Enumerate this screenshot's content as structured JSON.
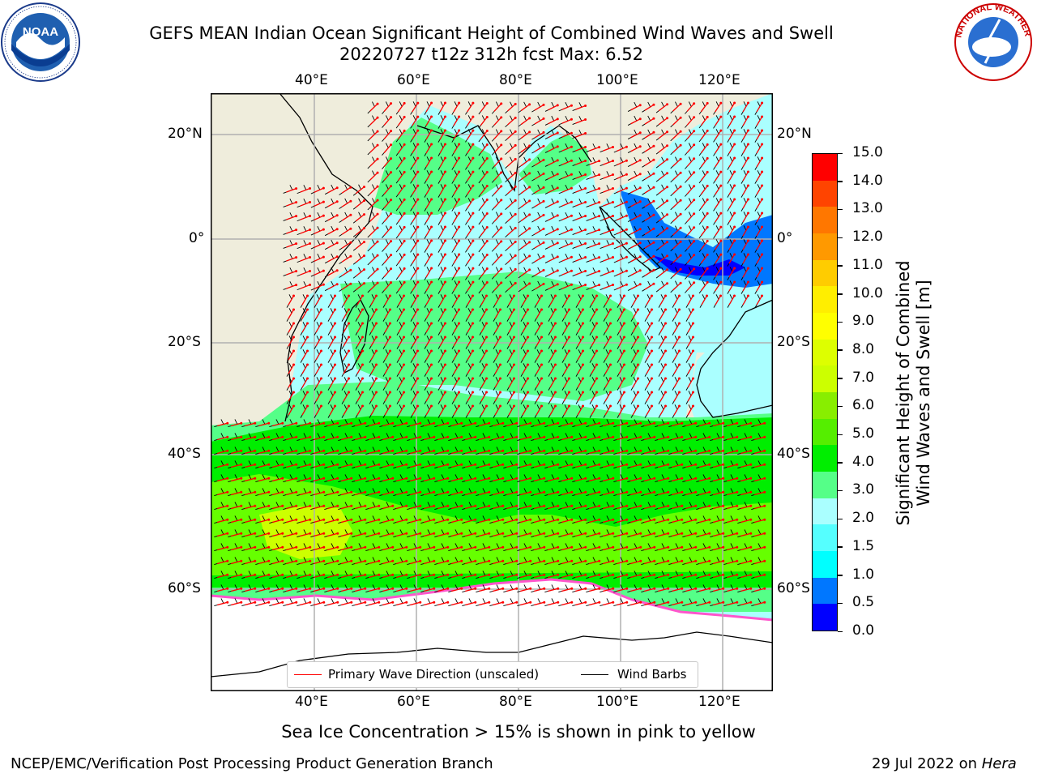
{
  "title": {
    "line1": "GEFS MEAN Indian Ocean Significant Height of Combined Wind Waves and Swell",
    "line2": "20220727 t12z 312h fcst   Max: 6.52"
  },
  "map": {
    "lon_ticks_top": [
      "40°E",
      "60°E",
      "80°E",
      "100°E",
      "120°E"
    ],
    "lon_ticks_bottom": [
      "40°E",
      "60°E",
      "80°E",
      "100°E",
      "120°E"
    ],
    "lat_ticks_left": [
      "20°N",
      "0°",
      "20°S",
      "40°S",
      "60°S"
    ],
    "lat_ticks_right": [
      "20°N",
      "0°",
      "20°S",
      "40°S",
      "60°S"
    ],
    "lon_range": [
      20,
      130
    ],
    "lat_range": [
      -75,
      27
    ],
    "colors": {
      "land": "#efeddc",
      "ice_white": "#ffffff",
      "wave_very_low": "#0000ff",
      "wave_low": "#00ffff",
      "wave_2_3": "#aaffff",
      "wave_3_4": "#55ff88",
      "wave_4_5": "#00ee00",
      "wave_5_6": "#66ff00",
      "wave_6_7": "#ccff00",
      "arrow": "#ff0000",
      "barb": "#000000"
    }
  },
  "legend": {
    "wave_direction": "Primary Wave Direction (unscaled)",
    "wind_barbs": "Wind Barbs"
  },
  "colorbar": {
    "ticks": [
      "15.0",
      "14.0",
      "13.0",
      "12.0",
      "11.0",
      "10.0",
      "9.0",
      "8.0",
      "7.0",
      "6.0",
      "5.0",
      "4.0",
      "3.0",
      "2.0",
      "1.5",
      "1.0",
      "0.5",
      "0.0"
    ],
    "colors": [
      "#0000ff",
      "#0077ff",
      "#00ffff",
      "#55ffff",
      "#aaffff",
      "#55ff88",
      "#00ee00",
      "#55ee00",
      "#88ee00",
      "#ccff00",
      "#ddff00",
      "#ffff00",
      "#ffee00",
      "#ffcc00",
      "#ff9900",
      "#ff7700",
      "#ff4400",
      "#ff0000"
    ],
    "label_line1": "Significant Height of Combined",
    "label_line2": "Wind Waves and Swell [m]"
  },
  "note": "Sea Ice Concentration > 15% is shown in pink to yellow",
  "footer": {
    "left": "NCEP/EMC/Verification Post Processing Product Generation Branch",
    "right_date": "29 Jul 2022 on ",
    "right_host": "Hera"
  },
  "logos": {
    "noaa": "NOAA",
    "nws_arc": "NATIONAL WEATHER SERVICE"
  }
}
